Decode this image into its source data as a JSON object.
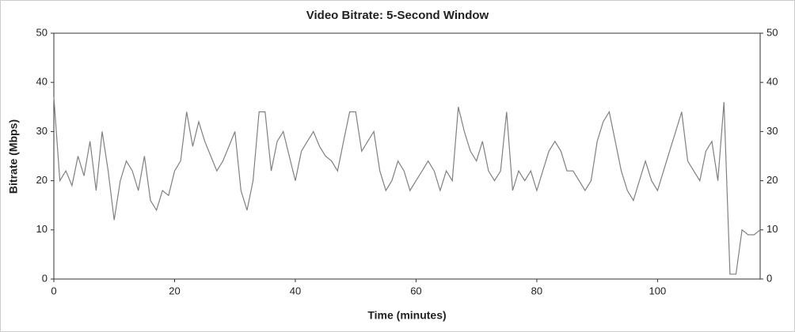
{
  "chart_data": {
    "type": "line",
    "title": "Video Bitrate: 5-Second Window",
    "x_label": "Time (minutes)",
    "y_label": "Bitrate (Mbps)",
    "xlim": [
      0,
      117
    ],
    "xticks": [
      0,
      20,
      40,
      60,
      80,
      100
    ],
    "ylim": [
      0,
      50
    ],
    "yticks": [
      0,
      10,
      20,
      30,
      40,
      50
    ],
    "y2lim": [
      0,
      50
    ],
    "y2ticks": [
      0,
      10,
      20,
      30,
      40,
      50
    ],
    "grid": false,
    "x": [
      0,
      1,
      2,
      3,
      4,
      5,
      6,
      7,
      8,
      9,
      10,
      11,
      12,
      13,
      14,
      15,
      16,
      17,
      18,
      19,
      20,
      21,
      22,
      23,
      24,
      25,
      26,
      27,
      28,
      29,
      30,
      31,
      32,
      33,
      34,
      35,
      36,
      37,
      38,
      39,
      40,
      41,
      42,
      43,
      44,
      45,
      46,
      47,
      48,
      49,
      50,
      51,
      52,
      53,
      54,
      55,
      56,
      57,
      58,
      59,
      60,
      61,
      62,
      63,
      64,
      65,
      66,
      67,
      68,
      69,
      70,
      71,
      72,
      73,
      74,
      75,
      76,
      77,
      78,
      79,
      80,
      81,
      82,
      83,
      84,
      85,
      86,
      87,
      88,
      89,
      90,
      91,
      92,
      93,
      94,
      95,
      96,
      97,
      98,
      99,
      100,
      101,
      102,
      103,
      104,
      105,
      106,
      107,
      108,
      109,
      110,
      111,
      112,
      113,
      114,
      115,
      116,
      117
    ],
    "series": [
      {
        "name": "Bitrate",
        "color": "#808080",
        "values": [
          37,
          20,
          22,
          19,
          25,
          21,
          28,
          18,
          30,
          22,
          12,
          20,
          24,
          22,
          18,
          25,
          16,
          14,
          18,
          17,
          22,
          24,
          34,
          27,
          32,
          28,
          25,
          22,
          24,
          27,
          30,
          18,
          14,
          20,
          34,
          34,
          22,
          28,
          30,
          25,
          20,
          26,
          28,
          30,
          27,
          25,
          24,
          22,
          28,
          34,
          34,
          26,
          28,
          30,
          22,
          18,
          20,
          24,
          22,
          18,
          20,
          22,
          24,
          22,
          18,
          22,
          20,
          35,
          30,
          26,
          24,
          28,
          22,
          20,
          22,
          34,
          18,
          22,
          20,
          22,
          18,
          22,
          26,
          28,
          26,
          22,
          22,
          20,
          18,
          20,
          28,
          32,
          34,
          28,
          22,
          18,
          16,
          20,
          24,
          20,
          18,
          22,
          26,
          30,
          34,
          24,
          22,
          20,
          26,
          28,
          20,
          36,
          1,
          1,
          10,
          9,
          9,
          10
        ]
      }
    ]
  }
}
